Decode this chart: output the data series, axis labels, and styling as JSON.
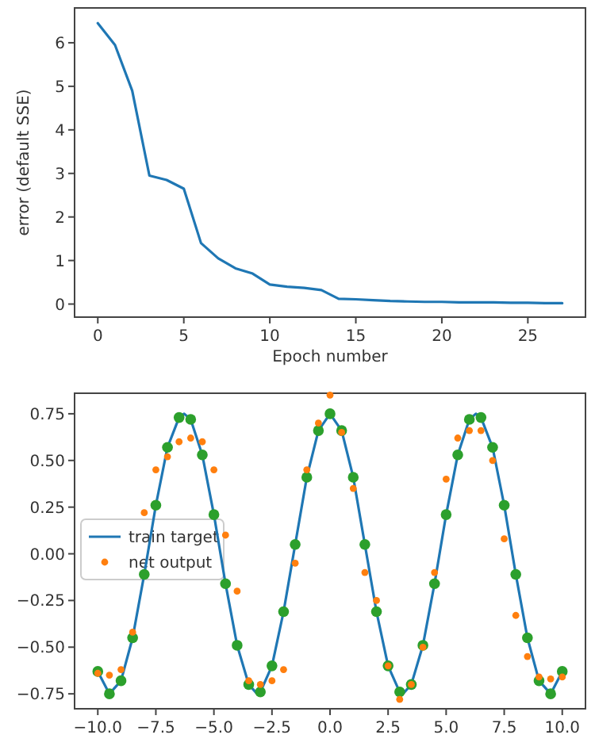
{
  "chart_data": [
    {
      "type": "line",
      "xlabel": "Epoch number",
      "ylabel": "error (default SSE)",
      "xlim": [
        -1.35,
        28.35
      ],
      "ylim": [
        -0.3,
        6.8
      ],
      "xticks": [
        0,
        5,
        10,
        15,
        20,
        25
      ],
      "yticks": [
        0,
        1,
        2,
        3,
        4,
        5,
        6
      ],
      "grid": false,
      "legend": false,
      "series": [
        {
          "color": "#1f77b4",
          "x": [
            0,
            1,
            2,
            3,
            4,
            5,
            6,
            7,
            8,
            9,
            10,
            11,
            12,
            13,
            14,
            15,
            16,
            17,
            18,
            19,
            20,
            21,
            22,
            23,
            24,
            25,
            26,
            27
          ],
          "values": [
            6.45,
            5.95,
            4.9,
            2.95,
            2.85,
            2.65,
            1.4,
            1.05,
            0.82,
            0.7,
            0.45,
            0.4,
            0.37,
            0.32,
            0.12,
            0.11,
            0.09,
            0.07,
            0.06,
            0.05,
            0.05,
            0.04,
            0.04,
            0.04,
            0.03,
            0.03,
            0.02,
            0.02
          ]
        }
      ]
    },
    {
      "type": "line",
      "xlim": [
        -11,
        11
      ],
      "ylim": [
        -0.83,
        0.86
      ],
      "xticks": [
        {
          "value": -10,
          "label": "−10.0"
        },
        {
          "value": -7.5,
          "label": "−7.5"
        },
        {
          "value": -5,
          "label": "−5.0"
        },
        {
          "value": -2.5,
          "label": "−2.5"
        },
        {
          "value": 0,
          "label": "0.0"
        },
        {
          "value": 2.5,
          "label": "2.5"
        },
        {
          "value": 5,
          "label": "5.0"
        },
        {
          "value": 7.5,
          "label": "7.5"
        },
        {
          "value": 10,
          "label": "10.0"
        }
      ],
      "yticks": [
        {
          "value": -0.75,
          "label": "−0.75"
        },
        {
          "value": -0.5,
          "label": "−0.50"
        },
        {
          "value": -0.25,
          "label": "−0.25"
        },
        {
          "value": 0,
          "label": "0.00"
        },
        {
          "value": 0.25,
          "label": "0.25"
        },
        {
          "value": 0.5,
          "label": "0.50"
        },
        {
          "value": 0.75,
          "label": "0.75"
        }
      ],
      "grid": false,
      "legend": "left",
      "series": [
        {
          "name": "train target",
          "type": "line",
          "color": "#1f77b4",
          "x": [
            -10,
            -9.5,
            -9,
            -8.5,
            -8,
            -7.5,
            -7,
            -6.5,
            -6.28,
            -6,
            -5.5,
            -5,
            -4.5,
            -4,
            -3.5,
            -3.14,
            -3,
            -2.5,
            -2,
            -1.5,
            -1,
            -0.5,
            0,
            0.5,
            1,
            1.5,
            2,
            2.5,
            3,
            3.14,
            3.5,
            4,
            4.5,
            5,
            5.5,
            6,
            6.28,
            6.5,
            7,
            7.5,
            8,
            8.5,
            9,
            9.5,
            10
          ],
          "values": [
            -0.63,
            -0.75,
            -0.68,
            -0.45,
            -0.11,
            0.26,
            0.57,
            0.73,
            0.75,
            0.72,
            0.53,
            0.21,
            -0.16,
            -0.49,
            -0.7,
            -0.75,
            -0.74,
            -0.6,
            -0.31,
            0.05,
            0.41,
            0.66,
            0.75,
            0.66,
            0.41,
            0.05,
            -0.31,
            -0.6,
            -0.74,
            -0.75,
            -0.7,
            -0.49,
            -0.16,
            0.21,
            0.53,
            0.72,
            0.75,
            0.73,
            0.57,
            0.26,
            -0.11,
            -0.45,
            -0.68,
            -0.75,
            -0.63
          ]
        },
        {
          "type": "scatter",
          "color": "#2ca02c",
          "marker": "circle",
          "x": [
            -10,
            -9.5,
            -9,
            -8.5,
            -8,
            -7.5,
            -7,
            -6.5,
            -6,
            -5.5,
            -5,
            -4.5,
            -4,
            -3.5,
            -3,
            -2.5,
            -2,
            -1.5,
            -1,
            -0.5,
            0,
            0.5,
            1,
            1.5,
            2,
            2.5,
            3,
            3.5,
            4,
            4.5,
            5,
            5.5,
            6,
            6.5,
            7,
            7.5,
            8,
            8.5,
            9,
            9.5,
            10
          ],
          "values": [
            -0.63,
            -0.75,
            -0.68,
            -0.45,
            -0.11,
            0.26,
            0.57,
            0.73,
            0.72,
            0.53,
            0.21,
            -0.16,
            -0.49,
            -0.7,
            -0.74,
            -0.6,
            -0.31,
            0.05,
            0.41,
            0.66,
            0.75,
            0.66,
            0.41,
            0.05,
            -0.31,
            -0.6,
            -0.74,
            -0.7,
            -0.49,
            -0.16,
            0.21,
            0.53,
            0.72,
            0.73,
            0.57,
            0.26,
            -0.11,
            -0.45,
            -0.68,
            -0.75,
            -0.63
          ]
        },
        {
          "name": "net output",
          "type": "scatter",
          "color": "#ff7f0e",
          "marker": "circle",
          "x": [
            -10,
            -9.5,
            -9,
            -8.5,
            -8,
            -7.5,
            -7,
            -6.5,
            -6,
            -5.5,
            -5,
            -4.5,
            -4,
            -3.5,
            -3,
            -2.5,
            -2,
            -1.5,
            -1,
            -0.5,
            0,
            0.5,
            1,
            1.5,
            2,
            2.5,
            3,
            3.5,
            4,
            4.5,
            5,
            5.5,
            6,
            6.5,
            7,
            7.5,
            8,
            8.5,
            9,
            9.5,
            10
          ],
          "values": [
            -0.64,
            -0.65,
            -0.62,
            -0.42,
            0.22,
            0.45,
            0.52,
            0.6,
            0.62,
            0.6,
            0.45,
            0.1,
            -0.2,
            -0.68,
            -0.7,
            -0.68,
            -0.62,
            -0.05,
            0.45,
            0.7,
            0.85,
            0.65,
            0.35,
            -0.1,
            -0.25,
            -0.6,
            -0.78,
            -0.7,
            -0.5,
            -0.1,
            0.4,
            0.62,
            0.66,
            0.66,
            0.5,
            0.08,
            -0.33,
            -0.55,
            -0.66,
            -0.67,
            -0.66
          ]
        }
      ]
    }
  ]
}
